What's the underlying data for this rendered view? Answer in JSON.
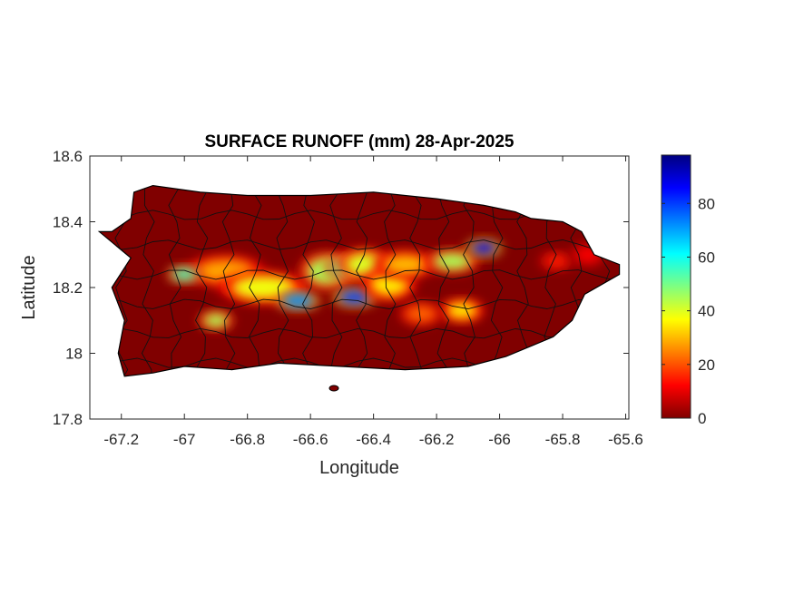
{
  "chart_data": {
    "type": "heatmap",
    "title": "SURFACE RUNOFF (mm) 28-Apr-2025",
    "xlabel": "Longitude",
    "ylabel": "Latitude",
    "xlim": [
      -67.3,
      -65.59
    ],
    "ylim": [
      17.8,
      18.6
    ],
    "xticks": [
      -67.2,
      -67,
      -66.8,
      -66.6,
      -66.4,
      -66.2,
      -66,
      -65.8,
      -65.6
    ],
    "xtick_labels": [
      "-67.2",
      "-67",
      "-66.8",
      "-66.6",
      "-66.4",
      "-66.2",
      "-66",
      "-65.8",
      "-65.6"
    ],
    "yticks": [
      17.8,
      18,
      18.2,
      18.4,
      18.6
    ],
    "ytick_labels": [
      "17.8",
      "18",
      "18.2",
      "18.4",
      "18.6"
    ],
    "grid": false,
    "colormap": "jet",
    "colorbar": {
      "range": [
        0,
        98
      ],
      "ticks": [
        0,
        20,
        40,
        60,
        80
      ],
      "tick_labels": [
        "0",
        "20",
        "40",
        "60",
        "80"
      ],
      "placement": "right"
    },
    "region_outline": [
      [
        -67.27,
        18.37
      ],
      [
        -67.23,
        18.37
      ],
      [
        -67.17,
        18.41
      ],
      [
        -67.16,
        18.49
      ],
      [
        -67.1,
        18.51
      ],
      [
        -66.95,
        18.49
      ],
      [
        -66.8,
        18.48
      ],
      [
        -66.6,
        18.48
      ],
      [
        -66.4,
        18.49
      ],
      [
        -66.2,
        18.47
      ],
      [
        -66.05,
        18.45
      ],
      [
        -65.95,
        18.43
      ],
      [
        -65.9,
        18.41
      ],
      [
        -65.8,
        18.4
      ],
      [
        -65.74,
        18.37
      ],
      [
        -65.7,
        18.3
      ],
      [
        -65.62,
        18.27
      ],
      [
        -65.62,
        18.24
      ],
      [
        -65.73,
        18.18
      ],
      [
        -65.77,
        18.1
      ],
      [
        -65.83,
        18.05
      ],
      [
        -65.98,
        17.99
      ],
      [
        -66.1,
        17.96
      ],
      [
        -66.3,
        17.95
      ],
      [
        -66.5,
        17.96
      ],
      [
        -66.7,
        17.97
      ],
      [
        -66.85,
        17.95
      ],
      [
        -67.0,
        17.96
      ],
      [
        -67.1,
        17.94
      ],
      [
        -67.19,
        17.93
      ],
      [
        -67.21,
        18.0
      ],
      [
        -67.19,
        18.1
      ],
      [
        -67.23,
        18.2
      ],
      [
        -67.17,
        18.29
      ],
      [
        -67.27,
        18.37
      ]
    ],
    "runoff_hotspots": [
      {
        "lon": -66.87,
        "lat": 18.25,
        "value": 28,
        "rlon": 0.09,
        "rlat": 0.035
      },
      {
        "lon": -66.75,
        "lat": 18.2,
        "value": 38,
        "rlon": 0.1,
        "rlat": 0.035
      },
      {
        "lon": -66.64,
        "lat": 18.16,
        "value": 72,
        "rlon": 0.05,
        "rlat": 0.02
      },
      {
        "lon": -66.55,
        "lat": 18.25,
        "value": 45,
        "rlon": 0.06,
        "rlat": 0.04
      },
      {
        "lon": -66.5,
        "lat": 18.26,
        "value": 50,
        "rlon": 0.04,
        "rlat": 0.025
      },
      {
        "lon": -66.43,
        "lat": 18.27,
        "value": 40,
        "rlon": 0.06,
        "rlat": 0.035
      },
      {
        "lon": -66.46,
        "lat": 18.17,
        "value": 80,
        "rlon": 0.05,
        "rlat": 0.02
      },
      {
        "lon": -66.35,
        "lat": 18.21,
        "value": 35,
        "rlon": 0.06,
        "rlat": 0.035
      },
      {
        "lon": -66.3,
        "lat": 18.27,
        "value": 30,
        "rlon": 0.07,
        "rlat": 0.03
      },
      {
        "lon": -66.15,
        "lat": 18.28,
        "value": 45,
        "rlon": 0.06,
        "rlat": 0.025
      },
      {
        "lon": -66.05,
        "lat": 18.32,
        "value": 88,
        "rlon": 0.04,
        "rlat": 0.018
      },
      {
        "lon": -66.12,
        "lat": 18.13,
        "value": 35,
        "rlon": 0.05,
        "rlat": 0.025
      },
      {
        "lon": -66.25,
        "lat": 18.12,
        "value": 22,
        "rlon": 0.05,
        "rlat": 0.025
      },
      {
        "lon": -67.0,
        "lat": 18.24,
        "value": 55,
        "rlon": 0.04,
        "rlat": 0.018
      },
      {
        "lon": -66.9,
        "lat": 18.1,
        "value": 45,
        "rlon": 0.04,
        "rlat": 0.02
      },
      {
        "lon": -65.82,
        "lat": 18.28,
        "value": 15,
        "rlon": 0.04,
        "rlat": 0.02
      },
      {
        "lon": -65.72,
        "lat": 18.3,
        "value": 12,
        "rlon": 0.04,
        "rlat": 0.025
      }
    ]
  }
}
